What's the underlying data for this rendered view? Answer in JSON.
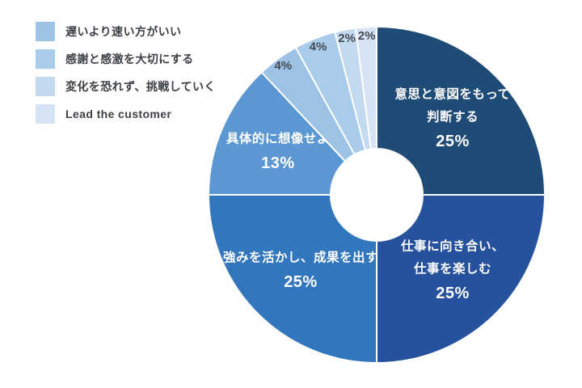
{
  "chart_data": {
    "type": "pie",
    "subtype": "donut",
    "title": "",
    "legend_position": "top-left",
    "total": 100,
    "start_angle_deg": 0,
    "direction": "clockwise",
    "slices": [
      {
        "label": "意思と意図をもって判断する",
        "value": 25,
        "percent_label": "25%",
        "color": "#1F4B77",
        "label_pos": "inside",
        "label_lines": [
          "意思と意図をもって",
          "判断する"
        ],
        "label_color": "#FFFFFF"
      },
      {
        "label": "仕事に向き合い、仕事を楽しむ",
        "value": 25,
        "percent_label": "25%",
        "color": "#25519D",
        "label_pos": "inside",
        "label_lines": [
          "仕事に向き合い、",
          "仕事を楽しむ"
        ],
        "label_color": "#FFFFFF"
      },
      {
        "label": "強みを活かし、成果を出す",
        "value": 25,
        "percent_label": "25%",
        "color": "#3277BD",
        "label_pos": "inside",
        "label_lines": [
          "強みを活かし、成果を出す"
        ],
        "label_color": "#FFFFFF"
      },
      {
        "label": "具体的に想像せよ",
        "value": 13,
        "percent_label": "13%",
        "color": "#5A97D3",
        "label_pos": "inside",
        "label_lines": [
          "具体的に想像せよ"
        ],
        "label_color": "#FFFFFF"
      },
      {
        "label": "遅いより速い方がいい",
        "value": 4,
        "percent_label": "4%",
        "color": "#9CC3E6",
        "label_pos": "outside",
        "label_color": "#454A52"
      },
      {
        "label": "感謝と感激を大切にする",
        "value": 4,
        "percent_label": "4%",
        "color": "#A9CCEB",
        "label_pos": "outside",
        "label_color": "#454A52"
      },
      {
        "label": "変化を恐れず、挑戦していく",
        "value": 2,
        "percent_label": "2%",
        "color": "#C3D9EF",
        "label_pos": "outside",
        "label_color": "#454A52"
      },
      {
        "label": "Lead the customer",
        "value": 2,
        "percent_label": "2%",
        "color": "#D5E3F4",
        "label_pos": "outside",
        "label_color": "#454A52"
      }
    ]
  },
  "legend": {
    "items": [
      {
        "label": "遅いより速い方がいい",
        "color": "#9CC3E6"
      },
      {
        "label": "感謝と感激を大切にする",
        "color": "#A9CCEB"
      },
      {
        "label": "変化を恐れず、挑戦していく",
        "color": "#C3D9EF"
      },
      {
        "label": "Lead the customer",
        "color": "#D5E3F4"
      }
    ]
  }
}
